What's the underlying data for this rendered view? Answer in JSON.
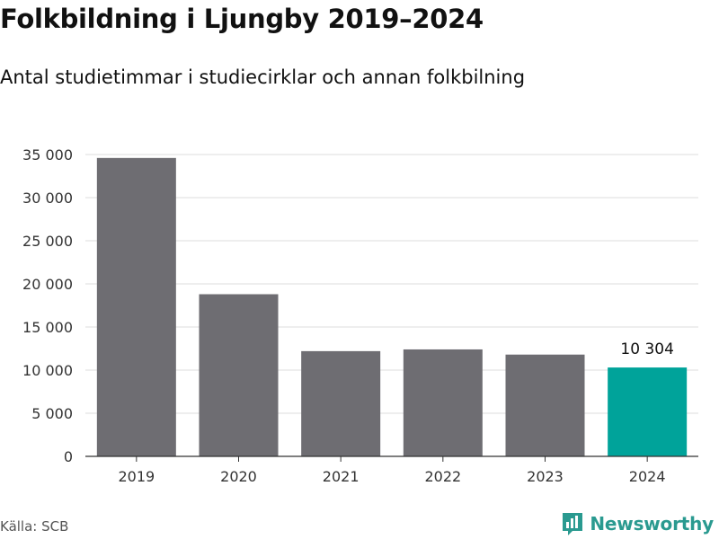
{
  "title": "Folkbildning i Ljungby 2019–2024",
  "subtitle": "Antal studietimmar i studiecirklar och annan folkbilning",
  "source": "Källa: SCB",
  "brand": {
    "name": "Newsworthy",
    "color": "#2a9a90",
    "logo_icon": "newsworthy-logo-icon"
  },
  "colors": {
    "bar": "#6e6d72",
    "highlight": "#00a39a",
    "grid": "#dcdcdc",
    "axis": "#333333"
  },
  "chart_data": {
    "type": "bar",
    "categories": [
      "2019",
      "2020",
      "2021",
      "2022",
      "2023",
      "2024"
    ],
    "values": [
      34600,
      18800,
      12200,
      12400,
      11800,
      10304
    ],
    "highlight_index": 5,
    "data_labels": [
      {
        "index": 5,
        "text": "10 304"
      }
    ],
    "xlabel": "",
    "ylabel": "",
    "ylim": [
      0,
      35000
    ],
    "yticks": [
      0,
      5000,
      10000,
      15000,
      20000,
      25000,
      30000,
      35000
    ],
    "ytick_labels": [
      "0",
      "5 000",
      "10 000",
      "15 000",
      "20 000",
      "25 000",
      "30 000",
      "35 000"
    ],
    "grid": true,
    "legend": "none"
  }
}
